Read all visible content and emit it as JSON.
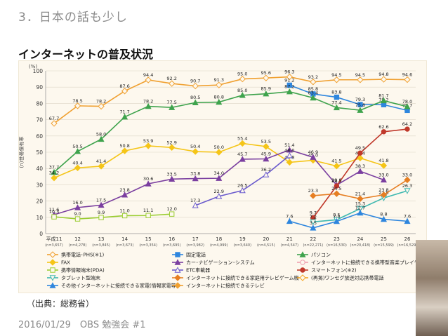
{
  "slide": {
    "title": "3．日本の話も少し",
    "subtitle": "インターネットの普及状況",
    "source": "（出典：総務省）",
    "footer": "2016/01/29　OBS 勉強会 #1"
  },
  "chart_data": {
    "type": "line",
    "unit_label": "(%)",
    "ylabel": "(n)世帯保有率",
    "ylim": [
      0,
      100
    ],
    "yticks": [
      0,
      10,
      20,
      30,
      40,
      50,
      60,
      70,
      80,
      90,
      100
    ],
    "grid": true,
    "legend_position": "bottom",
    "categories": [
      "平成11",
      "12",
      "13",
      "14",
      "15",
      "16",
      "17",
      "18",
      "19",
      "20",
      "21",
      "22",
      "23",
      "24",
      "25",
      "26"
    ],
    "sample_sizes": [
      "(n=3,657)",
      "(n=4,278)",
      "(n=3,845)",
      "(n=3,673)",
      "(n=3,354)",
      "(n=3,695)",
      "(n=3,982)",
      "(n=4,999)",
      "(n=3,640)",
      "(n=4,515)",
      "(n=4,547)",
      "(n=22,271)",
      "(n=16,530)",
      "(n=20,418)",
      "(n=15,599)",
      "(n=16,529)"
    ],
    "series": [
      {
        "name": "携帯電話･PHS(※1)",
        "color": "#f0a030",
        "marker": "diamond-open",
        "values": [
          67.7,
          78.5,
          78.2,
          87.6,
          94.4,
          92.2,
          90.7,
          91.3,
          95.0,
          95.6,
          96.3,
          93.2,
          94.5,
          94.5,
          94.8,
          94.6
        ]
      },
      {
        "name": "固定電話",
        "color": "#2e86de",
        "marker": "square",
        "values": [
          null,
          null,
          null,
          null,
          null,
          null,
          null,
          null,
          null,
          null,
          91.2,
          85.8,
          83.8,
          79.3,
          79.2,
          75.7
        ]
      },
      {
        "name": "パソコン",
        "color": "#3fa34d",
        "marker": "triangle",
        "values": [
          37.7,
          50.5,
          58.0,
          71.7,
          78.2,
          77.5,
          80.5,
          80.8,
          85.0,
          85.9,
          87.2,
          83.4,
          77.4,
          75.8,
          81.7,
          78.0
        ]
      },
      {
        "name": "FAX",
        "color": "#f5c518",
        "marker": "diamond",
        "values": [
          34.2,
          40.4,
          41.4,
          50.8,
          53.9,
          52.9,
          50.4,
          50.0,
          55.4,
          53.5,
          43.8,
          45.0,
          41.5,
          46.4,
          41.8,
          null
        ]
      },
      {
        "name": "カー･ナビゲーション･システム",
        "color": "#7b3fa0",
        "marker": "triangle",
        "values": [
          11.6,
          16.0,
          17.5,
          23.8,
          30.6,
          33.5,
          33.8,
          34.0,
          45.7,
          45.9,
          51.4,
          46.9,
          29.8,
          38.3,
          33.0,
          null
        ]
      },
      {
        "name": "インターネットに接続できる携帯型音楽プレイヤー",
        "color": "#f0a0b0",
        "marker": "circle-open",
        "values": [
          null,
          null,
          null,
          null,
          null,
          null,
          null,
          null,
          null,
          null,
          null,
          null,
          null,
          null,
          null,
          null
        ]
      },
      {
        "name": "携帯情報端末(PDA)",
        "color": "#9acd32",
        "marker": "square-open",
        "values": [
          10.3,
          9.0,
          9.9,
          11.0,
          11.1,
          12.0,
          null,
          null,
          null,
          null,
          null,
          null,
          null,
          null,
          null,
          null
        ]
      },
      {
        "name": "ETC車載器",
        "color": "#6a5acd",
        "marker": "triangle-open",
        "values": [
          null,
          null,
          null,
          null,
          null,
          null,
          17.3,
          22.9,
          26.5,
          36.2,
          48.0,
          null,
          null,
          null,
          null,
          null
        ]
      },
      {
        "name": "スマートフォン(※2)",
        "color": "#c0392b",
        "marker": "circle",
        "values": [
          null,
          null,
          null,
          null,
          null,
          null,
          null,
          null,
          null,
          null,
          null,
          9.7,
          29.3,
          49.5,
          62.6,
          64.2
        ]
      },
      {
        "name": "タブレット型端末",
        "color": "#3cb8b0",
        "marker": "triangle-down-open",
        "values": [
          null,
          null,
          null,
          null,
          null,
          null,
          null,
          null,
          null,
          null,
          null,
          7.2,
          8.5,
          15.3,
          21.9,
          26.3
        ]
      },
      {
        "name": "インターネットに接続できる家庭用テレビゲーム機",
        "color": "#e67e22",
        "marker": "diamond",
        "values": [
          null,
          null,
          null,
          null,
          null,
          null,
          null,
          null,
          null,
          null,
          null,
          23.3,
          24.5,
          21.4,
          23.8,
          33.0
        ]
      },
      {
        "name": "(再掲)ワンセグ放送対応携帯電話",
        "color": "#f5a623",
        "marker": "diamond-open",
        "values": [
          null,
          null,
          null,
          null,
          null,
          null,
          null,
          null,
          null,
          null,
          null,
          null,
          null,
          null,
          null,
          null
        ]
      },
      {
        "name": "その他インターネットに接続できる家電(情報家電等)",
        "color": "#2e86de",
        "marker": "triangle",
        "values": [
          null,
          null,
          null,
          null,
          null,
          null,
          null,
          null,
          null,
          null,
          7.6,
          3.5,
          7.5,
          12.7,
          8.8,
          7.6
        ]
      },
      {
        "name": "インターネットに接続できるテレビ",
        "color": "#f0a030",
        "marker": "diamond",
        "values": [
          null,
          null,
          null,
          null,
          null,
          null,
          null,
          null,
          null,
          null,
          null,
          null,
          null,
          null,
          null,
          null
        ]
      }
    ]
  }
}
